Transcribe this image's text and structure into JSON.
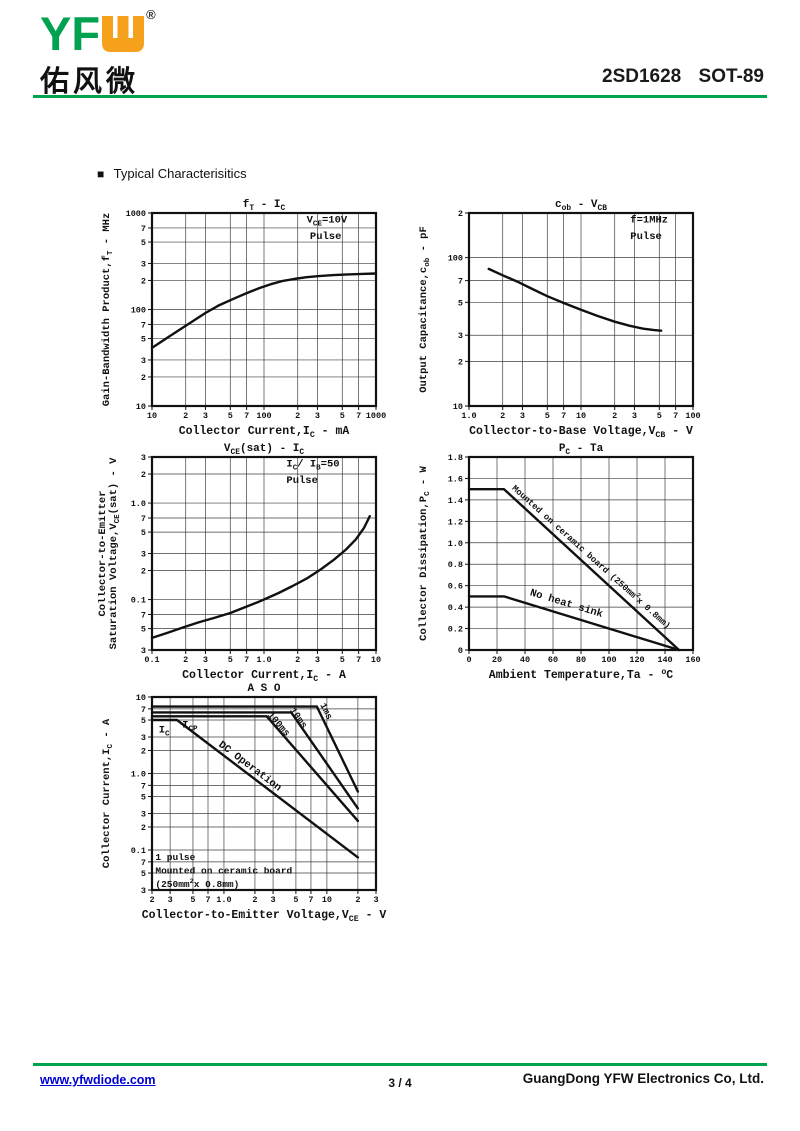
{
  "theme": {
    "green": "#00a24f",
    "orange": "#f6a11c",
    "link": "#0000d4",
    "ink": "#111111"
  },
  "header": {
    "logo": {
      "yf": "YF",
      "w_icon": "w-shape",
      "reg": "®",
      "cn": "佑风微"
    },
    "part": "2SD1628",
    "package": "SOT-89"
  },
  "section": {
    "bullet": "■",
    "title": "Typical Characterisitics"
  },
  "footer": {
    "website": "www.yfwdiode.com",
    "page": "3 / 4",
    "company": "GuangDong YFW Electronics Co, Ltd."
  },
  "chart_data": [
    {
      "id": "ft-ic",
      "type": "line",
      "title": "f_{T} - I_{C}",
      "xlabel": "Collector Current,I_{C} - mA",
      "ylabel": [
        "Gain-Bandwidth Product,f_{T} - MHz"
      ],
      "xscale": "log",
      "yscale": "log",
      "xlim": [
        10,
        1000
      ],
      "ylim": [
        10,
        1000
      ],
      "grid": true,
      "legend": "none",
      "xticks": [
        [
          10,
          "10"
        ],
        [
          20,
          "2"
        ],
        [
          30,
          "3"
        ],
        [
          50,
          "5"
        ],
        [
          70,
          "7"
        ],
        [
          100,
          "100"
        ],
        [
          200,
          "2"
        ],
        [
          300,
          "3"
        ],
        [
          500,
          "5"
        ],
        [
          700,
          "7"
        ],
        [
          1000,
          "1000"
        ]
      ],
      "yticks": [
        [
          10,
          "10"
        ],
        [
          20,
          "2"
        ],
        [
          30,
          "3"
        ],
        [
          50,
          "5"
        ],
        [
          70,
          "7"
        ],
        [
          100,
          "100"
        ],
        [
          200,
          "2"
        ],
        [
          300,
          "3"
        ],
        [
          500,
          "5"
        ],
        [
          700,
          "7"
        ],
        [
          1000,
          "1000"
        ]
      ],
      "annotations": [
        {
          "text": "V_{CE}=10V",
          "fx": 0.69,
          "fy": 0.05
        },
        {
          "text": "Pulse",
          "fx": 0.705,
          "fy": 0.135
        }
      ],
      "series": [
        {
          "name": "gain_bandwidth_product",
          "points": [
            [
              10,
              40
            ],
            [
              13,
              49
            ],
            [
              17,
              60
            ],
            [
              22,
              73
            ],
            [
              30,
              92
            ],
            [
              40,
              111
            ],
            [
              55,
              131
            ],
            [
              70,
              148
            ],
            [
              90,
              166
            ],
            [
              115,
              183
            ],
            [
              145,
              197
            ],
            [
              185,
              207
            ],
            [
              240,
              216
            ],
            [
              310,
              222
            ],
            [
              420,
              227
            ],
            [
              560,
              231
            ],
            [
              750,
              234
            ],
            [
              1000,
              236
            ]
          ]
        }
      ]
    },
    {
      "id": "cob-vcb",
      "type": "line",
      "title": "c_{ob} - V_{CB}",
      "xlabel": "Collector-to-Base Voltage,V_{CB} - V",
      "ylabel": [
        "Output Capacitance,c_{ob} - pF"
      ],
      "xscale": "log",
      "yscale": "log",
      "xlim": [
        1,
        100
      ],
      "ylim": [
        10,
        200
      ],
      "grid": true,
      "legend": "none",
      "xticks": [
        [
          1,
          "1.0"
        ],
        [
          2,
          "2"
        ],
        [
          3,
          "3"
        ],
        [
          5,
          "5"
        ],
        [
          7,
          "7"
        ],
        [
          10,
          "10"
        ],
        [
          20,
          "2"
        ],
        [
          30,
          "3"
        ],
        [
          50,
          "5"
        ],
        [
          70,
          "7"
        ],
        [
          100,
          "100"
        ]
      ],
      "yticks": [
        [
          10,
          "10"
        ],
        [
          20,
          "2"
        ],
        [
          30,
          "3"
        ],
        [
          50,
          "5"
        ],
        [
          70,
          "7"
        ],
        [
          100,
          "100"
        ],
        [
          200,
          "2"
        ]
      ],
      "annotations": [
        {
          "text": "f=1MHz",
          "fx": 0.72,
          "fy": 0.05
        },
        {
          "text": "Pulse",
          "fx": 0.72,
          "fy": 0.135
        }
      ],
      "series": [
        {
          "name": "output_capacitance",
          "points": [
            [
              1.5,
              84
            ],
            [
              2,
              76
            ],
            [
              2.7,
              69
            ],
            [
              3.6,
              62
            ],
            [
              5,
              55
            ],
            [
              7,
              49.5
            ],
            [
              10,
              44.5
            ],
            [
              14,
              40.5
            ],
            [
              20,
              37
            ],
            [
              27,
              34.8
            ],
            [
              36,
              33.2
            ],
            [
              45,
              32.5
            ],
            [
              52,
              32.2
            ]
          ]
        }
      ]
    },
    {
      "id": "vcesat-ic",
      "type": "line",
      "title": "V_{CE}(sat) - I_{C}",
      "xlabel": "Collector Current,I_{C} - A",
      "ylabel": [
        "Collector-to-Emitter",
        "Saturation Voltage,V_{CE}(sat) - V"
      ],
      "xscale": "log",
      "yscale": "log",
      "xlim": [
        0.1,
        10
      ],
      "ylim": [
        0.03,
        3
      ],
      "grid": true,
      "legend": "none",
      "xticks": [
        [
          0.1,
          "0.1"
        ],
        [
          0.2,
          "2"
        ],
        [
          0.3,
          "3"
        ],
        [
          0.5,
          "5"
        ],
        [
          0.7,
          "7"
        ],
        [
          1,
          "1.0"
        ],
        [
          2,
          "2"
        ],
        [
          3,
          "3"
        ],
        [
          5,
          "5"
        ],
        [
          7,
          "7"
        ],
        [
          10,
          "10"
        ]
      ],
      "yticks": [
        [
          0.03,
          "3"
        ],
        [
          0.05,
          "5"
        ],
        [
          0.07,
          "7"
        ],
        [
          0.1,
          "0.1"
        ],
        [
          0.2,
          "2"
        ],
        [
          0.3,
          "3"
        ],
        [
          0.5,
          "5"
        ],
        [
          0.7,
          "7"
        ],
        [
          1,
          "1.0"
        ],
        [
          2,
          "2"
        ],
        [
          3,
          "3"
        ]
      ],
      "annotations": [
        {
          "text": "I_{C}/ I_{B}=50",
          "fx": 0.6,
          "fy": 0.05
        },
        {
          "text": "Pulse",
          "fx": 0.6,
          "fy": 0.135
        }
      ],
      "series": [
        {
          "name": "saturation_voltage",
          "points": [
            [
              0.1,
              0.04
            ],
            [
              0.14,
              0.0455
            ],
            [
              0.19,
              0.0515
            ],
            [
              0.26,
              0.058
            ],
            [
              0.36,
              0.0645
            ],
            [
              0.5,
              0.0725
            ],
            [
              0.68,
              0.0835
            ],
            [
              0.9,
              0.095
            ],
            [
              1.0,
              0.1
            ],
            [
              1.35,
              0.117
            ],
            [
              1.8,
              0.138
            ],
            [
              2.4,
              0.165
            ],
            [
              3.2,
              0.205
            ],
            [
              4.2,
              0.258
            ],
            [
              5.4,
              0.33
            ],
            [
              6.6,
              0.42
            ],
            [
              7.8,
              0.55
            ],
            [
              8.8,
              0.73
            ]
          ]
        }
      ]
    },
    {
      "id": "pc-ta",
      "type": "line",
      "title": "P_{C} - Ta",
      "xlabel": "Ambient Temperature,Ta - ^{o}C",
      "ylabel": [
        "Collector Dissipation,P_{C} - W"
      ],
      "xscale": "linear",
      "yscale": "linear",
      "xlim": [
        0,
        160
      ],
      "ylim": [
        0,
        1.8
      ],
      "grid": true,
      "legend": "none",
      "xticks": [
        [
          0,
          "0"
        ],
        [
          20,
          "20"
        ],
        [
          40,
          "40"
        ],
        [
          60,
          "60"
        ],
        [
          80,
          "80"
        ],
        [
          100,
          "100"
        ],
        [
          120,
          "120"
        ],
        [
          140,
          "140"
        ],
        [
          160,
          "160"
        ]
      ],
      "yticks": [
        [
          0,
          "0"
        ],
        [
          0.2,
          "0.2"
        ],
        [
          0.4,
          "0.4"
        ],
        [
          0.6,
          "0.6"
        ],
        [
          0.8,
          "0.8"
        ],
        [
          1.0,
          "1.0"
        ],
        [
          1.2,
          "1.2"
        ],
        [
          1.4,
          "1.4"
        ],
        [
          1.6,
          "1.6"
        ],
        [
          1.8,
          "1.8"
        ]
      ],
      "annotations": [
        {
          "text": "Mounted on ceramic board (250mm^{2}x 0.8mm)",
          "fx": 0.19,
          "fy": 0.165,
          "rot": 42,
          "size": 8.8
        },
        {
          "text": "No heat sink",
          "fx": 0.27,
          "fy": 0.715,
          "rot": 17,
          "size": 10.5
        }
      ],
      "series": [
        {
          "name": "mounted_on_ceramic_board",
          "points": [
            [
              0,
              1.5
            ],
            [
              25,
              1.5
            ],
            [
              150,
              0
            ]
          ]
        },
        {
          "name": "no_heat_sink",
          "points": [
            [
              0,
              0.5
            ],
            [
              25,
              0.5
            ],
            [
              150,
              0
            ]
          ]
        }
      ]
    },
    {
      "id": "aso",
      "type": "line",
      "title": "A S O",
      "xlabel": "Collector-to-Emitter Voltage,V_{CE} - V",
      "ylabel": [
        "Collector Current,I_{C} - A"
      ],
      "xscale": "log",
      "yscale": "log",
      "xlim": [
        0.2,
        30
      ],
      "ylim": [
        0.03,
        10
      ],
      "grid": true,
      "legend": "none",
      "xticks": [
        [
          0.2,
          "2"
        ],
        [
          0.3,
          "3"
        ],
        [
          0.5,
          "5"
        ],
        [
          0.7,
          "7"
        ],
        [
          1,
          "1.0"
        ],
        [
          2,
          "2"
        ],
        [
          3,
          "3"
        ],
        [
          5,
          "5"
        ],
        [
          7,
          "7"
        ],
        [
          10,
          "10"
        ],
        [
          20,
          "2"
        ],
        [
          30,
          "3"
        ]
      ],
      "yticks": [
        [
          0.03,
          "3"
        ],
        [
          0.05,
          "5"
        ],
        [
          0.07,
          "7"
        ],
        [
          0.1,
          "0.1"
        ],
        [
          0.2,
          "2"
        ],
        [
          0.3,
          "3"
        ],
        [
          0.5,
          "5"
        ],
        [
          0.7,
          "7"
        ],
        [
          1,
          "1.0"
        ],
        [
          2,
          "2"
        ],
        [
          3,
          "3"
        ],
        [
          5,
          "5"
        ],
        [
          7,
          "7"
        ],
        [
          10,
          "10"
        ]
      ],
      "annotations": [
        {
          "text": "I_{C}",
          "fx": 0.03,
          "fy": 0.185
        },
        {
          "text": "I_{CP}",
          "fx": 0.135,
          "fy": 0.158
        },
        {
          "text": "1ms",
          "fx": 0.75,
          "fy": 0.04,
          "rot": 64,
          "size": 9.5
        },
        {
          "text": "10ms",
          "fx": 0.615,
          "fy": 0.068,
          "rot": 55,
          "size": 9.5
        },
        {
          "text": "100ms",
          "fx": 0.515,
          "fy": 0.094,
          "rot": 49,
          "size": 9.5
        },
        {
          "text": "DC Operation",
          "fx": 0.295,
          "fy": 0.252,
          "rot": 37,
          "size": 10.5
        },
        {
          "text": "1 pulse",
          "fx": 0.015,
          "fy": 0.845,
          "size": 9.5
        },
        {
          "text": "Mounted on ceramic board",
          "fx": 0.015,
          "fy": 0.915,
          "size": 9.5
        },
        {
          "text": "(250mm^{2}x 0.8mm)",
          "fx": 0.015,
          "fy": 0.985,
          "size": 9.5
        }
      ],
      "series": [
        {
          "name": "dc_operation",
          "points": [
            [
              0.2,
              5
            ],
            [
              0.35,
              5
            ],
            [
              20,
              0.08
            ]
          ]
        },
        {
          "name": "pulse_100ms",
          "points": [
            [
              0.2,
              5.6
            ],
            [
              2.6,
              5.6
            ],
            [
              20,
              0.24
            ]
          ]
        },
        {
          "name": "pulse_10ms",
          "points": [
            [
              0.2,
              6.3
            ],
            [
              4.5,
              6.3
            ],
            [
              20,
              0.35
            ]
          ]
        },
        {
          "name": "pulse_1ms",
          "points": [
            [
              0.2,
              7.5
            ],
            [
              8,
              7.5
            ],
            [
              20,
              0.58
            ]
          ]
        }
      ]
    }
  ]
}
